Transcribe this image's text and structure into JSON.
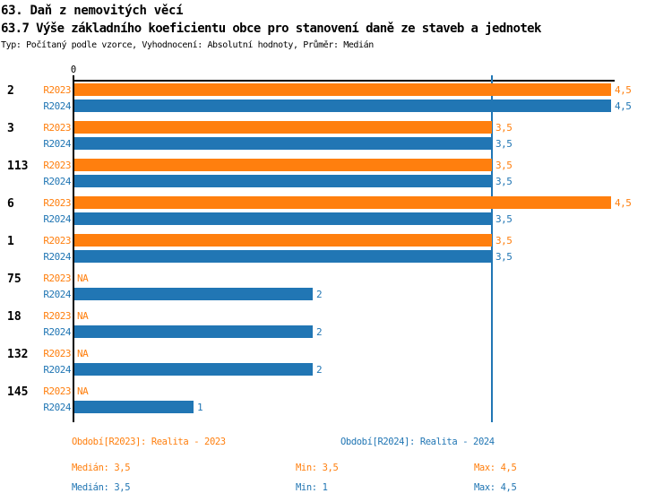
{
  "header": {
    "title": "63. Daň z nemovitých věcí",
    "subtitle": "63.7 Výše základního koeficientu obce pro stanovení daně ze staveb a jednotek",
    "meta": "Typ: Počítaný podle vzorce, Vyhodnocení: Absolutní hodnoty, Průměr: Medián"
  },
  "colors": {
    "r2023": "#ff7f0e",
    "r2024": "#2176b4",
    "axis": "#000000",
    "background": "#ffffff"
  },
  "chart_data": {
    "type": "bar",
    "orientation": "horizontal",
    "title": "63.7 Výše základního koeficientu obce pro stanovení daně ze staveb a jednotek",
    "xlabel": "",
    "ylabel": "",
    "xlim": [
      0,
      4.54
    ],
    "x_tick_labels": [
      "0"
    ],
    "grid": false,
    "categories": [
      "2",
      "3",
      "113",
      "6",
      "1",
      "75",
      "18",
      "132",
      "145"
    ],
    "series": [
      {
        "name": "R2023",
        "color": "#ff7f0e",
        "values": [
          4.5,
          3.5,
          3.5,
          4.5,
          3.5,
          null,
          null,
          null,
          null
        ],
        "labels": [
          "4,5",
          "3,5",
          "3,5",
          "4,5",
          "3,5",
          "NA",
          "NA",
          "NA",
          "NA"
        ]
      },
      {
        "name": "R2024",
        "color": "#2176b4",
        "values": [
          4.5,
          3.5,
          3.5,
          3.5,
          3.5,
          2,
          2,
          2,
          1
        ],
        "labels": [
          "4,5",
          "3,5",
          "3,5",
          "3,5",
          "3,5",
          "2",
          "2",
          "2",
          "1"
        ]
      }
    ],
    "reference_line": {
      "value": 3.5,
      "color": "#2176b4",
      "meaning": "Medián R2024"
    },
    "legend_position": "bottom"
  },
  "legend": {
    "items": [
      {
        "label": "Období[R2023]: Realita - 2023",
        "series": "R2023"
      },
      {
        "label": "Období[R2024]: Realita - 2024",
        "series": "R2024"
      }
    ]
  },
  "stats": {
    "rows": [
      {
        "series": "R2023",
        "median": "Medián: 3,5",
        "min": "Min: 3,5",
        "max": "Max: 4,5"
      },
      {
        "series": "R2024",
        "median": "Medián: 3,5",
        "min": "Min: 1",
        "max": "Max: 4,5"
      }
    ]
  }
}
